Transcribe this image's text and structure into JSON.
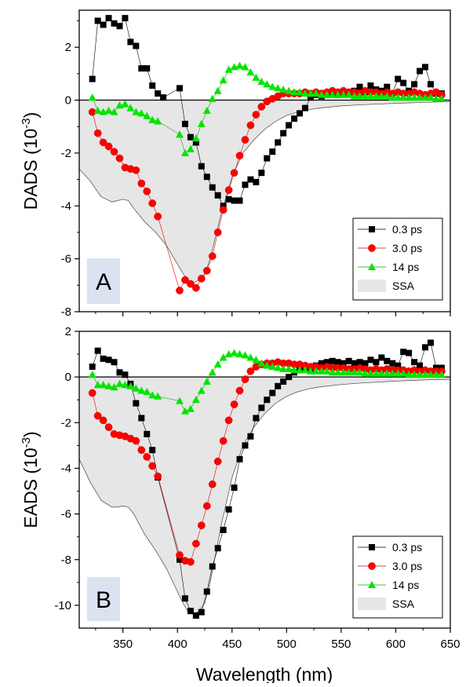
{
  "chart_data": {
    "type": "scatter",
    "xlabel": "Wavelength (nm)",
    "xlim": [
      310,
      650
    ],
    "xticks": [
      "350",
      "400",
      "450",
      "500",
      "550",
      "600",
      "650"
    ],
    "colors": {
      "0.3 ps": "#000000",
      "3.0 ps": "#ff0000",
      "14 ps": "#00e600",
      "SSA": "#e6e6e6"
    },
    "legend_position": "bottom-right",
    "panels": [
      {
        "letter": "A",
        "ylabel": "DADS (10",
        "ylabel_exp": "-3",
        "ylabel_end": ")",
        "ylim": [
          -8,
          3.4
        ],
        "yticks": [
          "-8",
          "-6",
          "-4",
          "-2",
          "0",
          "2"
        ],
        "series": [
          {
            "name": "0.3 ps",
            "marker": "square",
            "x": [
              322,
              327,
              332,
              337,
              342,
              347,
              352,
              357,
              362,
              367,
              372,
              377,
              382,
              387,
              402,
              407,
              412,
              417,
              422,
              427,
              432,
              437,
              442,
              447,
              452,
              457,
              462,
              467,
              472,
              477,
              482,
              487,
              492,
              497,
              502,
              507,
              512,
              517,
              522,
              527,
              532,
              537,
              542,
              547,
              552,
              557,
              562,
              567,
              572,
              577,
              582,
              587,
              592,
              597,
              602,
              607,
              612,
              617,
              622,
              627,
              632,
              637,
              642
            ],
            "y": [
              0.8,
              3.0,
              2.85,
              3.1,
              2.9,
              2.8,
              3.1,
              2.2,
              2.05,
              1.2,
              1.2,
              0.55,
              0.25,
              0.1,
              0.45,
              -0.9,
              -1.4,
              -1.6,
              -2.5,
              -2.9,
              -3.3,
              -3.6,
              -4.0,
              -3.75,
              -3.8,
              -3.8,
              -3.2,
              -3.0,
              -3.1,
              -2.75,
              -2.2,
              -1.95,
              -1.6,
              -1.25,
              -0.95,
              -0.7,
              -0.5,
              -0.3,
              0.1,
              0.2,
              0.15,
              0.2,
              0.25,
              0.2,
              0.25,
              0.3,
              0.35,
              0.5,
              0.3,
              0.55,
              0.4,
              0.35,
              0.5,
              0.25,
              0.8,
              0.65,
              0.35,
              0.6,
              1.1,
              1.25,
              0.6,
              0.25,
              0.25
            ]
          },
          {
            "name": "3.0 ps",
            "marker": "circle",
            "x": [
              322,
              327,
              332,
              337,
              342,
              347,
              352,
              357,
              362,
              367,
              372,
              377,
              382,
              402,
              407,
              412,
              417,
              422,
              427,
              432,
              437,
              442,
              447,
              452,
              457,
              462,
              467,
              472,
              477,
              482,
              487,
              492,
              497,
              502,
              507,
              512,
              517,
              522,
              527,
              532,
              537,
              542,
              547,
              552,
              557,
              562,
              567,
              572,
              577,
              582,
              587,
              592,
              597,
              602,
              607,
              612,
              617,
              622,
              627,
              632,
              637,
              642
            ],
            "y": [
              -0.45,
              -1.25,
              -1.6,
              -1.75,
              -1.95,
              -2.2,
              -2.55,
              -2.6,
              -2.65,
              -3.15,
              -3.45,
              -3.9,
              -4.4,
              -7.2,
              -6.8,
              -6.95,
              -7.1,
              -6.75,
              -6.45,
              -5.9,
              -5.0,
              -4.15,
              -3.4,
              -2.75,
              -2.1,
              -1.5,
              -0.95,
              -0.55,
              -0.25,
              -0.05,
              0.05,
              0.15,
              0.25,
              0.25,
              0.25,
              0.25,
              0.3,
              0.25,
              0.3,
              0.25,
              0.3,
              0.35,
              0.3,
              0.35,
              0.3,
              0.3,
              0.25,
              0.35,
              0.3,
              0.3,
              0.25,
              0.3,
              0.25,
              0.3,
              0.25,
              0.25,
              0.3,
              0.25,
              0.2,
              0.25,
              0.3,
              0.2
            ]
          },
          {
            "name": "14 ps",
            "marker": "triangle",
            "x": [
              322,
              327,
              332,
              337,
              342,
              347,
              352,
              357,
              362,
              367,
              372,
              377,
              382,
              402,
              407,
              412,
              417,
              422,
              427,
              432,
              437,
              442,
              447,
              452,
              457,
              462,
              467,
              472,
              477,
              482,
              487,
              492,
              497,
              502,
              507,
              512,
              517,
              522,
              527,
              532,
              537,
              542,
              547,
              552,
              557,
              562,
              567,
              572,
              577,
              582,
              587,
              592,
              597,
              602,
              607,
              612,
              617,
              622,
              627,
              632,
              637,
              642
            ],
            "y": [
              0.1,
              -0.4,
              -0.45,
              -0.4,
              -0.45,
              -0.2,
              -0.15,
              -0.3,
              -0.45,
              -0.5,
              -0.6,
              -0.75,
              -0.8,
              -1.3,
              -2.0,
              -1.85,
              -1.45,
              -0.9,
              -0.4,
              0.05,
              0.35,
              0.75,
              1.15,
              1.25,
              1.3,
              1.25,
              1.05,
              0.85,
              0.7,
              0.6,
              0.5,
              0.45,
              0.4,
              0.35,
              0.3,
              0.3,
              0.25,
              0.25,
              0.25,
              0.2,
              0.2,
              0.2,
              0.2,
              0.2,
              0.2,
              0.15,
              0.15,
              0.15,
              0.15,
              0.15,
              0.15,
              0.15,
              0.1,
              0.1,
              0.1,
              0.1,
              0.1,
              0.1,
              0.1,
              0.1,
              0.05,
              0.05
            ]
          },
          {
            "name": "SSA",
            "type": "area",
            "x": [
              310,
              320,
              330,
              340,
              345,
              350,
              355,
              360,
              370,
              380,
              390,
              400,
              405,
              410,
              415,
              420,
              425,
              430,
              440,
              450,
              460,
              470,
              480,
              490,
              500,
              510,
              520,
              530,
              550,
              570,
              600,
              630,
              650
            ],
            "y": [
              -2.6,
              -3.05,
              -3.65,
              -3.85,
              -3.8,
              -3.75,
              -3.8,
              -4.1,
              -4.6,
              -5.0,
              -5.5,
              -6.2,
              -6.55,
              -6.85,
              -6.9,
              -6.8,
              -6.6,
              -6.0,
              -4.3,
              -2.9,
              -2.0,
              -1.5,
              -1.1,
              -0.8,
              -0.58,
              -0.45,
              -0.36,
              -0.3,
              -0.22,
              -0.17,
              -0.12,
              -0.08,
              -0.06
            ]
          }
        ]
      },
      {
        "letter": "B",
        "ylabel": "EADS (10",
        "ylabel_exp": "-3",
        "ylabel_end": ")",
        "ylim": [
          -11,
          2
        ],
        "yticks": [
          "-10",
          "-8",
          "-6",
          "-4",
          "-2",
          "0",
          "2"
        ],
        "series": [
          {
            "name": "0.3 ps",
            "marker": "square",
            "x": [
              322,
              327,
              332,
              337,
              342,
              347,
              352,
              357,
              362,
              367,
              372,
              377,
              382,
              402,
              407,
              412,
              417,
              422,
              427,
              432,
              437,
              442,
              447,
              452,
              457,
              462,
              467,
              472,
              477,
              482,
              487,
              492,
              497,
              502,
              507,
              512,
              517,
              522,
              527,
              532,
              537,
              542,
              547,
              552,
              557,
              562,
              567,
              572,
              577,
              582,
              587,
              592,
              597,
              602,
              607,
              612,
              617,
              622,
              627,
              632,
              637,
              642
            ],
            "y": [
              0.45,
              1.15,
              0.8,
              0.75,
              0.65,
              0.2,
              0.1,
              -0.3,
              -1.15,
              -1.8,
              -2.5,
              -3.2,
              -4.4,
              -8.0,
              -9.7,
              -10.25,
              -10.45,
              -10.3,
              -9.4,
              -8.3,
              -7.5,
              -6.7,
              -5.8,
              -4.85,
              -3.6,
              -3.0,
              -2.6,
              -1.8,
              -1.35,
              -1.0,
              -0.7,
              -0.4,
              -0.2,
              0.0,
              0.2,
              0.3,
              0.35,
              0.35,
              0.5,
              0.6,
              0.65,
              0.7,
              0.65,
              0.6,
              0.7,
              0.6,
              0.65,
              0.6,
              0.75,
              0.65,
              0.85,
              0.7,
              0.6,
              0.5,
              1.1,
              1.05,
              0.65,
              0.5,
              1.3,
              1.5,
              0.4,
              0.4
            ]
          },
          {
            "name": "3.0 ps",
            "marker": "circle",
            "x": [
              322,
              327,
              332,
              337,
              342,
              347,
              352,
              357,
              362,
              367,
              372,
              377,
              382,
              402,
              407,
              412,
              417,
              422,
              427,
              432,
              437,
              442,
              447,
              452,
              457,
              462,
              467,
              472,
              477,
              482,
              487,
              492,
              497,
              502,
              507,
              512,
              517,
              522,
              527,
              532,
              537,
              542,
              547,
              552,
              557,
              562,
              567,
              572,
              577,
              582,
              587,
              592,
              597,
              602,
              607,
              612,
              617,
              622,
              627,
              632,
              637,
              642
            ],
            "y": [
              -0.7,
              -1.7,
              -1.9,
              -2.2,
              -2.5,
              -2.55,
              -2.6,
              -2.7,
              -2.8,
              -3.2,
              -3.5,
              -3.9,
              -4.35,
              -7.8,
              -8.05,
              -8.1,
              -7.3,
              -6.5,
              -5.65,
              -4.7,
              -3.7,
              -2.8,
              -1.9,
              -1.2,
              -0.6,
              -0.1,
              0.25,
              0.45,
              0.55,
              0.6,
              0.6,
              0.65,
              0.6,
              0.6,
              0.55,
              0.55,
              0.5,
              0.45,
              0.45,
              0.4,
              0.45,
              0.4,
              0.4,
              0.4,
              0.35,
              0.35,
              0.4,
              0.35,
              0.3,
              0.35,
              0.3,
              0.35,
              0.3,
              0.3,
              0.3,
              0.25,
              0.3,
              0.25,
              0.3,
              0.25,
              0.25,
              0.25
            ]
          },
          {
            "name": "14 ps",
            "marker": "triangle",
            "x": [
              322,
              327,
              332,
              337,
              342,
              347,
              352,
              357,
              362,
              367,
              372,
              377,
              382,
              402,
              407,
              412,
              417,
              422,
              427,
              432,
              437,
              442,
              447,
              452,
              457,
              462,
              467,
              472,
              477,
              482,
              487,
              492,
              497,
              502,
              507,
              512,
              517,
              522,
              527,
              532,
              537,
              542,
              547,
              552,
              557,
              562,
              567,
              572,
              577,
              582,
              587,
              592,
              597,
              602,
              607,
              612,
              617,
              622,
              627,
              632,
              637,
              642
            ],
            "y": [
              0.1,
              -0.35,
              -0.35,
              -0.4,
              -0.45,
              -0.3,
              -0.35,
              -0.4,
              -0.5,
              -0.6,
              -0.65,
              -0.8,
              -0.85,
              -1.05,
              -1.5,
              -1.4,
              -1.0,
              -0.6,
              -0.2,
              0.2,
              0.55,
              0.85,
              1.0,
              1.05,
              1.0,
              0.95,
              0.85,
              0.75,
              0.6,
              0.5,
              0.45,
              0.4,
              0.35,
              0.35,
              0.3,
              0.3,
              0.3,
              0.25,
              0.25,
              0.25,
              0.25,
              0.2,
              0.2,
              0.2,
              0.2,
              0.2,
              0.2,
              0.15,
              0.15,
              0.15,
              0.15,
              0.15,
              0.15,
              0.15,
              0.15,
              0.1,
              0.1,
              0.1,
              0.1,
              0.1,
              0.1,
              0.1
            ]
          },
          {
            "name": "SSA",
            "type": "area",
            "x": [
              310,
              320,
              330,
              340,
              345,
              350,
              355,
              360,
              370,
              380,
              390,
              400,
              405,
              410,
              415,
              420,
              425,
              430,
              440,
              450,
              460,
              470,
              480,
              490,
              500,
              510,
              520,
              530,
              550,
              570,
              600,
              630,
              650
            ],
            "y": [
              -3.6,
              -4.6,
              -5.4,
              -5.7,
              -5.7,
              -5.65,
              -5.7,
              -6.0,
              -6.9,
              -7.6,
              -8.4,
              -9.4,
              -9.9,
              -10.3,
              -10.4,
              -10.25,
              -9.9,
              -9.0,
              -6.5,
              -4.4,
              -3.0,
              -2.2,
              -1.6,
              -1.15,
              -0.85,
              -0.65,
              -0.52,
              -0.44,
              -0.33,
              -0.26,
              -0.18,
              -0.12,
              -0.1
            ]
          }
        ]
      }
    ]
  }
}
